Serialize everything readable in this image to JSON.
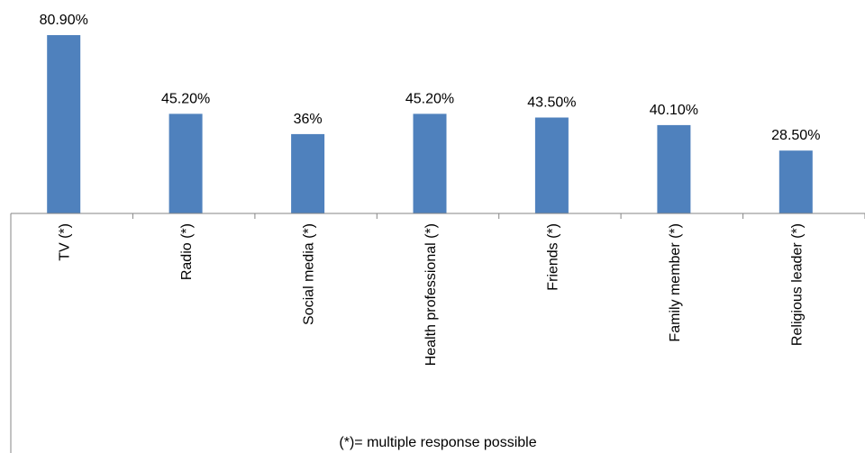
{
  "chart_data": {
    "type": "bar",
    "title": "",
    "xlabel": "",
    "ylabel": "",
    "ylim": [
      0,
      85
    ],
    "grid": false,
    "legend": "none",
    "categories": [
      "TV (*)",
      "Radio (*)",
      "Social media (*)",
      "Health professional (*)",
      "Friends (*)",
      "Family member (*)",
      "Religious leader (*)"
    ],
    "values": [
      80.9,
      45.2,
      36,
      45.2,
      43.5,
      40.1,
      28.5
    ],
    "data_labels": [
      "80.90%",
      "45.20%",
      "36%",
      "45.20%",
      "43.50%",
      "40.10%",
      "28.50%"
    ],
    "bar_color": "#4F81BD",
    "footnote": "(*)= multiple response possible"
  }
}
